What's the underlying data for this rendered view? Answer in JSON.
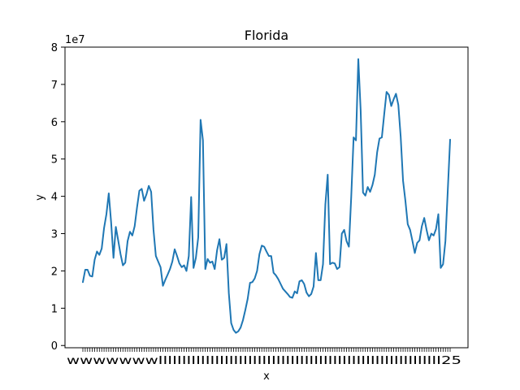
{
  "chart_data": {
    "type": "line",
    "title": "Florida",
    "xlabel": "x",
    "ylabel": "y",
    "y_multiplier_label": "1e7",
    "y_multiplier": 10000000,
    "ylim": [
      -0.06,
      8.0
    ],
    "yticks": [
      0,
      1,
      2,
      3,
      4,
      5,
      6,
      7,
      8
    ],
    "grid": false,
    "legend": "none",
    "series_color": "#1f77b4",
    "x_ticks_dense": true,
    "x_tick_label_visible_start": "w",
    "x_tick_label_visible_end": "25",
    "series": [
      {
        "values": [
          1.7,
          2.03,
          2.03,
          1.87,
          1.85,
          2.3,
          2.52,
          2.43,
          2.6,
          3.15,
          3.52,
          4.08,
          3.3,
          2.35,
          3.18,
          2.82,
          2.45,
          2.15,
          2.22,
          2.8,
          3.05,
          2.95,
          3.2,
          3.7,
          4.15,
          4.2,
          3.88,
          4.05,
          4.28,
          4.12,
          3.1,
          2.4,
          2.25,
          2.1,
          1.6,
          1.76,
          1.9,
          2.05,
          2.25,
          2.58,
          2.4,
          2.2,
          2.1,
          2.15,
          2.0,
          2.4,
          3.98,
          2.08,
          2.35,
          2.9,
          6.05,
          5.5,
          2.05,
          2.32,
          2.22,
          2.25,
          2.05,
          2.55,
          2.85,
          2.3,
          2.35,
          2.72,
          1.4,
          0.6,
          0.42,
          0.34,
          0.38,
          0.48,
          0.68,
          0.95,
          1.25,
          1.68,
          1.7,
          1.8,
          2.0,
          2.45,
          2.68,
          2.65,
          2.52,
          2.4,
          2.4,
          1.95,
          1.88,
          1.78,
          1.65,
          1.52,
          1.45,
          1.38,
          1.3,
          1.28,
          1.45,
          1.4,
          1.72,
          1.75,
          1.65,
          1.42,
          1.32,
          1.38,
          1.58,
          2.48,
          1.75,
          1.75,
          2.18,
          3.78,
          4.58,
          2.18,
          2.22,
          2.2,
          2.05,
          2.1,
          3.0,
          3.1,
          2.8,
          2.65,
          4.0,
          5.58,
          5.5,
          7.68,
          6.3,
          4.1,
          4.02,
          4.25,
          4.12,
          4.3,
          4.58,
          5.18,
          5.55,
          5.58,
          6.2,
          6.8,
          6.72,
          6.42,
          6.6,
          6.75,
          6.45,
          5.6,
          4.42,
          3.88,
          3.25,
          3.1,
          2.8,
          2.48,
          2.75,
          2.82,
          3.2,
          3.42,
          3.1,
          2.82,
          3.0,
          2.95,
          3.12,
          3.52,
          2.08,
          2.18,
          2.8,
          4.15,
          5.52
        ]
      }
    ]
  }
}
